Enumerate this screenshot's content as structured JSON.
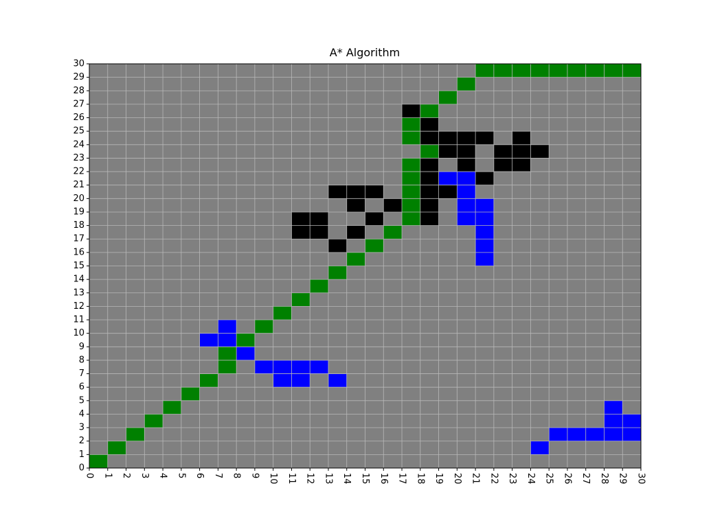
{
  "chart_data": {
    "type": "heatmap",
    "title": "A* Algorithm",
    "xlabel": "",
    "ylabel": "",
    "xlim": [
      0,
      30
    ],
    "ylim": [
      0,
      30
    ],
    "x_ticks": [
      0,
      1,
      2,
      3,
      4,
      5,
      6,
      7,
      8,
      9,
      10,
      11,
      12,
      13,
      14,
      15,
      16,
      17,
      18,
      19,
      20,
      21,
      22,
      23,
      24,
      25,
      26,
      27,
      28,
      29,
      30
    ],
    "y_ticks": [
      0,
      1,
      2,
      3,
      4,
      5,
      6,
      7,
      8,
      9,
      10,
      11,
      12,
      13,
      14,
      15,
      16,
      17,
      18,
      19,
      20,
      21,
      22,
      23,
      24,
      25,
      26,
      27,
      28,
      29,
      30
    ],
    "x_tick_rotation": "vertical",
    "grid": true,
    "colors": {
      "background": "#808080",
      "grid": "#b8b8b8",
      "path": "#008000",
      "obstacle": "#000000",
      "visited": "#0000ff"
    },
    "cells": {
      "path": [
        [
          0,
          0
        ],
        [
          1,
          1
        ],
        [
          2,
          2
        ],
        [
          3,
          3
        ],
        [
          4,
          4
        ],
        [
          5,
          5
        ],
        [
          6,
          6
        ],
        [
          7,
          7
        ],
        [
          7,
          8
        ],
        [
          8,
          9
        ],
        [
          9,
          10
        ],
        [
          10,
          11
        ],
        [
          11,
          12
        ],
        [
          12,
          13
        ],
        [
          13,
          14
        ],
        [
          14,
          15
        ],
        [
          15,
          16
        ],
        [
          16,
          17
        ],
        [
          17,
          18
        ],
        [
          17,
          19
        ],
        [
          17,
          20
        ],
        [
          17,
          21
        ],
        [
          17,
          22
        ],
        [
          18,
          23
        ],
        [
          17,
          24
        ],
        [
          17,
          25
        ],
        [
          18,
          26
        ],
        [
          19,
          27
        ],
        [
          20,
          28
        ],
        [
          21,
          29
        ],
        [
          22,
          29
        ],
        [
          23,
          29
        ],
        [
          24,
          29
        ],
        [
          25,
          29
        ],
        [
          26,
          29
        ],
        [
          27,
          29
        ],
        [
          28,
          29
        ],
        [
          29,
          29
        ]
      ],
      "obstacle": [
        [
          13,
          16
        ],
        [
          11,
          17
        ],
        [
          12,
          17
        ],
        [
          14,
          17
        ],
        [
          11,
          18
        ],
        [
          12,
          18
        ],
        [
          15,
          18
        ],
        [
          14,
          19
        ],
        [
          16,
          19
        ],
        [
          13,
          20
        ],
        [
          14,
          20
        ],
        [
          15,
          20
        ],
        [
          18,
          18
        ],
        [
          18,
          19
        ],
        [
          18,
          20
        ],
        [
          19,
          20
        ],
        [
          18,
          21
        ],
        [
          18,
          22
        ],
        [
          20,
          22
        ],
        [
          22,
          22
        ],
        [
          23,
          22
        ],
        [
          19,
          23
        ],
        [
          20,
          23
        ],
        [
          22,
          23
        ],
        [
          23,
          23
        ],
        [
          24,
          23
        ],
        [
          18,
          24
        ],
        [
          19,
          24
        ],
        [
          20,
          24
        ],
        [
          21,
          24
        ],
        [
          23,
          24
        ],
        [
          18,
          25
        ],
        [
          17,
          26
        ],
        [
          21,
          21
        ]
      ],
      "visited": [
        [
          10,
          6
        ],
        [
          11,
          6
        ],
        [
          13,
          6
        ],
        [
          9,
          7
        ],
        [
          10,
          7
        ],
        [
          11,
          7
        ],
        [
          12,
          7
        ],
        [
          8,
          8
        ],
        [
          6,
          9
        ],
        [
          7,
          9
        ],
        [
          7,
          10
        ],
        [
          21,
          15
        ],
        [
          21,
          16
        ],
        [
          21,
          17
        ],
        [
          20,
          18
        ],
        [
          21,
          18
        ],
        [
          20,
          19
        ],
        [
          21,
          19
        ],
        [
          20,
          20
        ],
        [
          19,
          21
        ],
        [
          20,
          21
        ],
        [
          24,
          1
        ],
        [
          25,
          2
        ],
        [
          26,
          2
        ],
        [
          27,
          2
        ],
        [
          28,
          2
        ],
        [
          29,
          2
        ],
        [
          28,
          3
        ],
        [
          29,
          3
        ],
        [
          28,
          4
        ]
      ]
    }
  }
}
